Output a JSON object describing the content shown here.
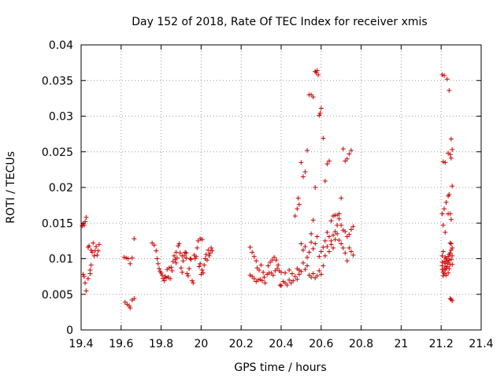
{
  "chart_data": {
    "type": "scatter",
    "title": "Day 152 of 2018, Rate Of TEC Index for receiver xmis",
    "xlabel": "GPS time / hours",
    "ylabel": "ROTI / TECUs",
    "xlim": [
      19.4,
      21.4
    ],
    "ylim": [
      0,
      0.04
    ],
    "x_ticks": [
      19.4,
      19.6,
      19.8,
      20,
      20.2,
      20.4,
      20.6,
      20.8,
      21,
      21.2,
      21.4
    ],
    "x_tick_labels": [
      "19.4",
      "19.6",
      "19.8",
      "20",
      "20.2",
      "20.4",
      "20.6",
      "20.8",
      "21",
      "21.2",
      "21.4"
    ],
    "y_ticks": [
      0,
      0.005,
      0.01,
      0.015,
      0.02,
      0.025,
      0.03,
      0.035,
      0.04
    ],
    "y_tick_labels": [
      "0",
      "0.005",
      "0.01",
      "0.015",
      "0.02",
      "0.025",
      "0.03",
      "0.035",
      "0.04"
    ],
    "grid": true,
    "marker": "+",
    "series_color": "#cc0000",
    "points": [
      [
        19.405,
        0.0146
      ],
      [
        19.41,
        0.0149
      ],
      [
        19.415,
        0.0147
      ],
      [
        19.42,
        0.0152
      ],
      [
        19.425,
        0.0158
      ],
      [
        19.41,
        0.0078
      ],
      [
        19.415,
        0.0075
      ],
      [
        19.42,
        0.0066
      ],
      [
        19.425,
        0.0055
      ],
      [
        19.435,
        0.0072
      ],
      [
        19.445,
        0.0079
      ],
      [
        19.435,
        0.0116
      ],
      [
        19.44,
        0.0118
      ],
      [
        19.45,
        0.0112
      ],
      [
        19.455,
        0.0109
      ],
      [
        19.46,
        0.0122
      ],
      [
        19.465,
        0.0104
      ],
      [
        19.47,
        0.0111
      ],
      [
        19.475,
        0.0117
      ],
      [
        19.48,
        0.0105
      ],
      [
        19.485,
        0.0111
      ],
      [
        19.49,
        0.012
      ],
      [
        19.45,
        0.0091
      ],
      [
        19.445,
        0.0084
      ],
      [
        19.615,
        0.0102
      ],
      [
        19.625,
        0.0101
      ],
      [
        19.635,
        0.01
      ],
      [
        19.645,
        0.0093
      ],
      [
        19.655,
        0.0101
      ],
      [
        19.665,
        0.0128
      ],
      [
        19.62,
        0.0039
      ],
      [
        19.63,
        0.0036
      ],
      [
        19.64,
        0.0034
      ],
      [
        19.645,
        0.0031
      ],
      [
        19.655,
        0.0042
      ],
      [
        19.665,
        0.0044
      ],
      [
        19.755,
        0.0122
      ],
      [
        19.765,
        0.0119
      ],
      [
        19.775,
        0.0111
      ],
      [
        19.78,
        0.01
      ],
      [
        19.785,
        0.0093
      ],
      [
        19.79,
        0.0086
      ],
      [
        19.795,
        0.0082
      ],
      [
        19.8,
        0.008
      ],
      [
        19.805,
        0.0077
      ],
      [
        19.81,
        0.0072
      ],
      [
        19.815,
        0.0069
      ],
      [
        19.82,
        0.0075
      ],
      [
        19.825,
        0.0073
      ],
      [
        19.83,
        0.0085
      ],
      [
        19.835,
        0.0074
      ],
      [
        19.84,
        0.0087
      ],
      [
        19.845,
        0.0072
      ],
      [
        19.85,
        0.0088
      ],
      [
        19.855,
        0.0083
      ],
      [
        19.86,
        0.0096
      ],
      [
        19.865,
        0.0104
      ],
      [
        19.87,
        0.0099
      ],
      [
        19.875,
        0.0094
      ],
      [
        19.88,
        0.0101
      ],
      [
        19.885,
        0.0118
      ],
      [
        19.89,
        0.0121
      ],
      [
        19.895,
        0.0108
      ],
      [
        19.9,
        0.0087
      ],
      [
        19.905,
        0.0081
      ],
      [
        19.91,
        0.0097
      ],
      [
        19.915,
        0.0104
      ],
      [
        19.92,
        0.0109
      ],
      [
        19.925,
        0.0101
      ],
      [
        19.93,
        0.0079
      ],
      [
        19.935,
        0.0076
      ],
      [
        19.94,
        0.0086
      ],
      [
        19.945,
        0.01
      ],
      [
        19.95,
        0.0099
      ],
      [
        19.955,
        0.0069
      ],
      [
        19.96,
        0.0066
      ],
      [
        19.965,
        0.0105
      ],
      [
        19.97,
        0.01
      ],
      [
        19.975,
        0.0103
      ],
      [
        19.98,
        0.0115
      ],
      [
        19.985,
        0.0125
      ],
      [
        19.99,
        0.0089
      ],
      [
        19.995,
        0.0093
      ],
      [
        20.0,
        0.0078
      ],
      [
        20.005,
        0.0084
      ],
      [
        20.01,
        0.008
      ],
      [
        20.015,
        0.0091
      ],
      [
        20.02,
        0.01
      ],
      [
        20.025,
        0.0106
      ],
      [
        20.03,
        0.0098
      ],
      [
        20.035,
        0.0112
      ],
      [
        20.04,
        0.0104
      ],
      [
        20.045,
        0.0108
      ],
      [
        20.05,
        0.0115
      ],
      [
        20.055,
        0.0111
      ],
      [
        19.995,
        0.0128
      ],
      [
        20.005,
        0.0127
      ],
      [
        19.925,
        0.0108
      ],
      [
        19.905,
        0.0104
      ],
      [
        19.875,
        0.0109
      ],
      [
        20.245,
        0.0116
      ],
      [
        20.255,
        0.0109
      ],
      [
        20.265,
        0.0103
      ],
      [
        20.275,
        0.0097
      ],
      [
        20.28,
        0.0087
      ],
      [
        20.29,
        0.0084
      ],
      [
        20.3,
        0.0091
      ],
      [
        20.31,
        0.0081
      ],
      [
        20.245,
        0.0077
      ],
      [
        20.255,
        0.0075
      ],
      [
        20.265,
        0.0072
      ],
      [
        20.275,
        0.0068
      ],
      [
        20.285,
        0.007
      ],
      [
        20.295,
        0.0071
      ],
      [
        20.305,
        0.0069
      ],
      [
        20.315,
        0.0074
      ],
      [
        20.32,
        0.0066
      ],
      [
        20.33,
        0.0078
      ],
      [
        20.34,
        0.008
      ],
      [
        20.35,
        0.008
      ],
      [
        20.36,
        0.0077
      ],
      [
        20.37,
        0.0083
      ],
      [
        20.38,
        0.0086
      ],
      [
        20.39,
        0.0083
      ],
      [
        20.395,
        0.0063
      ],
      [
        20.4,
        0.0062
      ],
      [
        20.41,
        0.0068
      ],
      [
        20.42,
        0.0066
      ],
      [
        20.43,
        0.0063
      ],
      [
        20.44,
        0.007
      ],
      [
        20.45,
        0.0066
      ],
      [
        20.46,
        0.0069
      ],
      [
        20.47,
        0.0075
      ],
      [
        20.48,
        0.0071
      ],
      [
        20.49,
        0.0078
      ],
      [
        20.335,
        0.009
      ],
      [
        20.345,
        0.0095
      ],
      [
        20.355,
        0.0098
      ],
      [
        20.365,
        0.0102
      ],
      [
        20.375,
        0.0098
      ],
      [
        20.385,
        0.0091
      ],
      [
        20.4,
        0.0081
      ],
      [
        20.42,
        0.008
      ],
      [
        20.44,
        0.0084
      ],
      [
        20.455,
        0.0079
      ],
      [
        20.48,
        0.0086
      ],
      [
        20.49,
        0.0084
      ],
      [
        20.5,
        0.0082
      ],
      [
        20.51,
        0.0094
      ],
      [
        20.52,
        0.0085
      ],
      [
        20.53,
        0.009
      ],
      [
        20.54,
        0.0077
      ],
      [
        20.55,
        0.0074
      ],
      [
        20.56,
        0.0079
      ],
      [
        20.57,
        0.0073
      ],
      [
        20.58,
        0.0076
      ],
      [
        20.59,
        0.0083
      ],
      [
        20.6,
        0.0078
      ],
      [
        20.61,
        0.009
      ],
      [
        20.62,
        0.0104
      ],
      [
        20.63,
        0.0117
      ],
      [
        20.64,
        0.011
      ],
      [
        20.65,
        0.0125
      ],
      [
        20.66,
        0.0133
      ],
      [
        20.67,
        0.0138
      ],
      [
        20.68,
        0.0147
      ],
      [
        20.69,
        0.0156
      ],
      [
        20.7,
        0.0147
      ],
      [
        20.71,
        0.014
      ],
      [
        20.72,
        0.0138
      ],
      [
        20.73,
        0.0131
      ],
      [
        20.74,
        0.0134
      ],
      [
        20.75,
        0.0141
      ],
      [
        20.76,
        0.0145
      ],
      [
        20.5,
        0.0121
      ],
      [
        20.51,
        0.0112
      ],
      [
        20.52,
        0.0117
      ],
      [
        20.53,
        0.0102
      ],
      [
        20.54,
        0.0109
      ],
      [
        20.55,
        0.0123
      ],
      [
        20.56,
        0.0114
      ],
      [
        20.57,
        0.0121
      ],
      [
        20.58,
        0.0131
      ],
      [
        20.59,
        0.0103
      ],
      [
        20.6,
        0.011
      ],
      [
        20.61,
        0.0116
      ],
      [
        20.62,
        0.0125
      ],
      [
        20.63,
        0.0137
      ],
      [
        20.64,
        0.0131
      ],
      [
        20.65,
        0.012
      ],
      [
        20.66,
        0.0115
      ],
      [
        20.67,
        0.0127
      ],
      [
        20.68,
        0.0135
      ],
      [
        20.69,
        0.0126
      ],
      [
        20.7,
        0.0121
      ],
      [
        20.71,
        0.0115
      ],
      [
        20.72,
        0.0108
      ],
      [
        20.73,
        0.0097
      ],
      [
        20.74,
        0.0115
      ],
      [
        20.75,
        0.011
      ],
      [
        20.76,
        0.0105
      ],
      [
        20.47,
        0.016
      ],
      [
        20.48,
        0.017
      ],
      [
        20.485,
        0.0185
      ],
      [
        20.49,
        0.0176
      ],
      [
        20.5,
        0.0235
      ],
      [
        20.51,
        0.0215
      ],
      [
        20.52,
        0.0222
      ],
      [
        20.53,
        0.0252
      ],
      [
        20.54,
        0.033
      ],
      [
        20.55,
        0.033
      ],
      [
        20.56,
        0.0327
      ],
      [
        20.57,
        0.0363
      ],
      [
        20.575,
        0.0361
      ],
      [
        20.58,
        0.0364
      ],
      [
        20.585,
        0.0358
      ],
      [
        20.59,
        0.0301
      ],
      [
        20.595,
        0.0304
      ],
      [
        20.6,
        0.0311
      ],
      [
        20.61,
        0.0269
      ],
      [
        20.62,
        0.0209
      ],
      [
        20.63,
        0.0233
      ],
      [
        20.64,
        0.0237
      ],
      [
        20.65,
        0.0153
      ],
      [
        20.66,
        0.016
      ],
      [
        20.67,
        0.0161
      ],
      [
        20.68,
        0.0161
      ],
      [
        20.69,
        0.0163
      ],
      [
        20.7,
        0.0185
      ],
      [
        20.71,
        0.0254
      ],
      [
        20.72,
        0.0237
      ],
      [
        20.73,
        0.024
      ],
      [
        20.74,
        0.0247
      ],
      [
        20.75,
        0.0252
      ],
      [
        20.57,
        0.02
      ],
      [
        20.56,
        0.0154
      ],
      [
        20.55,
        0.0135
      ],
      [
        21.205,
        0.0358
      ],
      [
        21.215,
        0.0357
      ],
      [
        21.23,
        0.0352
      ],
      [
        21.24,
        0.0336
      ],
      [
        21.25,
        0.0268
      ],
      [
        21.255,
        0.0253
      ],
      [
        21.245,
        0.0246
      ],
      [
        21.25,
        0.0241
      ],
      [
        21.235,
        0.0248
      ],
      [
        21.22,
        0.0235
      ],
      [
        21.21,
        0.0236
      ],
      [
        21.205,
        0.0163
      ],
      [
        21.215,
        0.017
      ],
      [
        21.225,
        0.0179
      ],
      [
        21.235,
        0.0188
      ],
      [
        21.24,
        0.019
      ],
      [
        21.245,
        0.0163
      ],
      [
        21.25,
        0.0155
      ],
      [
        21.255,
        0.0202
      ],
      [
        21.21,
        0.0147
      ],
      [
        21.22,
        0.0137
      ],
      [
        21.235,
        0.0163
      ],
      [
        21.205,
        0.0104
      ],
      [
        21.205,
        0.0095
      ],
      [
        21.205,
        0.009
      ],
      [
        21.205,
        0.0085
      ],
      [
        21.21,
        0.0081
      ],
      [
        21.21,
        0.0076
      ],
      [
        21.21,
        0.011
      ],
      [
        21.215,
        0.0096
      ],
      [
        21.215,
        0.0087
      ],
      [
        21.215,
        0.0079
      ],
      [
        21.22,
        0.0102
      ],
      [
        21.22,
        0.0093
      ],
      [
        21.22,
        0.0084
      ],
      [
        21.225,
        0.01
      ],
      [
        21.225,
        0.0087
      ],
      [
        21.225,
        0.0077
      ],
      [
        21.23,
        0.0097
      ],
      [
        21.23,
        0.0089
      ],
      [
        21.235,
        0.0103
      ],
      [
        21.235,
        0.0094
      ],
      [
        21.24,
        0.0106
      ],
      [
        21.24,
        0.0098
      ],
      [
        21.245,
        0.0122
      ],
      [
        21.245,
        0.0108
      ],
      [
        21.245,
        0.0092
      ],
      [
        21.25,
        0.0121
      ],
      [
        21.25,
        0.0112
      ],
      [
        21.25,
        0.0099
      ],
      [
        21.255,
        0.0115
      ],
      [
        21.255,
        0.0104
      ],
      [
        21.255,
        0.0092
      ],
      [
        21.24,
        0.0086
      ],
      [
        21.235,
        0.008
      ],
      [
        21.245,
        0.0044
      ],
      [
        21.255,
        0.0041
      ],
      [
        21.25,
        0.0043
      ]
    ]
  }
}
